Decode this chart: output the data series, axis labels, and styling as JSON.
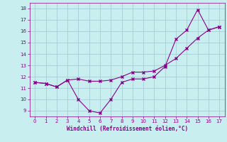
{
  "x": [
    0,
    1,
    2,
    3,
    4,
    5,
    6,
    7,
    8,
    9,
    10,
    11,
    12,
    13,
    14,
    15,
    16,
    17
  ],
  "line1": [
    11.5,
    11.4,
    11.1,
    11.7,
    10.0,
    9.0,
    8.8,
    10.0,
    11.5,
    11.8,
    11.8,
    12.0,
    12.9,
    15.3,
    16.1,
    17.9,
    16.1,
    16.4
  ],
  "line2": [
    11.5,
    11.4,
    11.1,
    11.7,
    11.8,
    11.6,
    11.6,
    11.7,
    12.0,
    12.4,
    12.4,
    12.5,
    13.0,
    13.6,
    14.5,
    15.4,
    16.1,
    16.4
  ],
  "color": "#8B008B",
  "bg_color": "#c8eef0",
  "grid_color": "#a0c8d0",
  "xlabel": "Windchill (Refroidissement éolien,°C)",
  "xlim": [
    -0.5,
    17.5
  ],
  "ylim": [
    8.5,
    18.5
  ],
  "xticks": [
    0,
    1,
    2,
    3,
    4,
    5,
    6,
    7,
    8,
    9,
    10,
    11,
    12,
    13,
    14,
    15,
    16,
    17
  ],
  "yticks": [
    9,
    10,
    11,
    12,
    13,
    14,
    15,
    16,
    17,
    18
  ]
}
